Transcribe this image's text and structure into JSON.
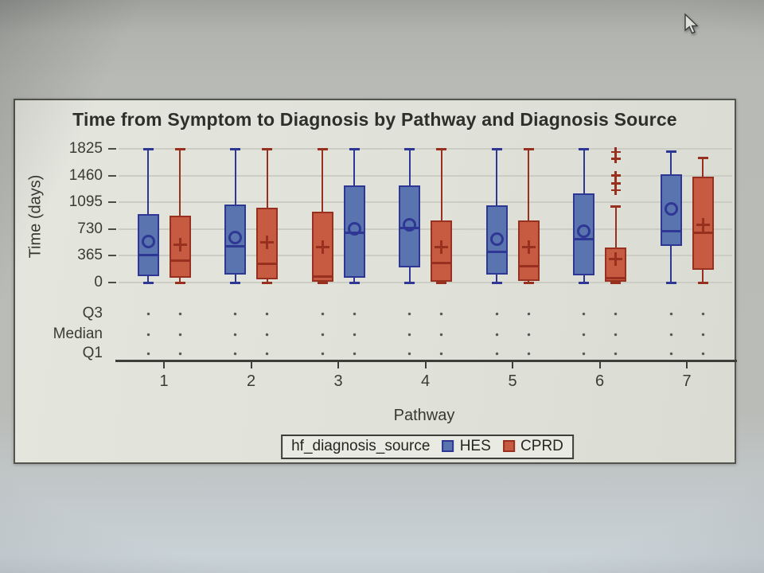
{
  "chart_data": {
    "type": "grouped_boxplot",
    "title": "Time from Symptom to Diagnosis by Pathway and Diagnosis Source",
    "xlabel": "Pathway",
    "ylabel": "Time (days)",
    "ylim": [
      0,
      1825
    ],
    "y_ticks": [
      0,
      365,
      730,
      1095,
      1460,
      1825
    ],
    "categories": [
      "1",
      "2",
      "3",
      "4",
      "5",
      "6",
      "7"
    ],
    "stat_rows": [
      "Q3",
      "Median",
      "Q1"
    ],
    "grid": "horizontal",
    "groups": [
      {
        "name": "HES",
        "fill": "#5a74b0",
        "stroke": "#2f3795",
        "marker": "circle"
      },
      {
        "name": "CPRD",
        "fill": "#c75b41",
        "stroke": "#97301f",
        "marker": "plus"
      }
    ],
    "boxes": [
      {
        "pathway": "1",
        "group": "HES",
        "position": "left",
        "low": 0,
        "q1": 90,
        "median": 380,
        "mean": 560,
        "q3": 930,
        "high": 1825,
        "outliers": []
      },
      {
        "pathway": "1",
        "group": "CPRD",
        "position": "right",
        "low": 0,
        "q1": 70,
        "median": 300,
        "mean": 520,
        "q3": 910,
        "high": 1825,
        "outliers": []
      },
      {
        "pathway": "2",
        "group": "HES",
        "position": "left",
        "low": 0,
        "q1": 110,
        "median": 490,
        "mean": 610,
        "q3": 1070,
        "high": 1825,
        "outliers": []
      },
      {
        "pathway": "2",
        "group": "CPRD",
        "position": "right",
        "low": 0,
        "q1": 40,
        "median": 260,
        "mean": 550,
        "q3": 1020,
        "high": 1825,
        "outliers": []
      },
      {
        "pathway": "3",
        "group": "CPRD",
        "position": "left",
        "low": 0,
        "q1": 10,
        "median": 80,
        "mean": 480,
        "q3": 970,
        "high": 1825,
        "outliers": []
      },
      {
        "pathway": "3",
        "group": "HES",
        "position": "right",
        "low": 0,
        "q1": 60,
        "median": 680,
        "mean": 730,
        "q3": 1330,
        "high": 1825,
        "outliers": []
      },
      {
        "pathway": "4",
        "group": "HES",
        "position": "left",
        "low": 0,
        "q1": 210,
        "median": 740,
        "mean": 790,
        "q3": 1320,
        "high": 1825,
        "outliers": []
      },
      {
        "pathway": "4",
        "group": "CPRD",
        "position": "right",
        "low": 0,
        "q1": 10,
        "median": 270,
        "mean": 480,
        "q3": 850,
        "high": 1825,
        "outliers": []
      },
      {
        "pathway": "5",
        "group": "HES",
        "position": "left",
        "low": 0,
        "q1": 110,
        "median": 420,
        "mean": 590,
        "q3": 1050,
        "high": 1825,
        "outliers": []
      },
      {
        "pathway": "5",
        "group": "CPRD",
        "position": "right",
        "low": 0,
        "q1": 20,
        "median": 220,
        "mean": 480,
        "q3": 850,
        "high": 1825,
        "outliers": []
      },
      {
        "pathway": "6",
        "group": "HES",
        "position": "left",
        "low": 0,
        "q1": 100,
        "median": 590,
        "mean": 700,
        "q3": 1220,
        "high": 1825,
        "outliers": []
      },
      {
        "pathway": "6",
        "group": "CPRD",
        "position": "right",
        "low": 0,
        "q1": 10,
        "median": 65,
        "mean": 320,
        "q3": 480,
        "high": 1040,
        "outliers": [
          1260,
          1350,
          1460,
          1690,
          1780
        ]
      },
      {
        "pathway": "7",
        "group": "HES",
        "position": "left",
        "low": 0,
        "q1": 500,
        "median": 700,
        "mean": 1000,
        "q3": 1480,
        "high": 1790,
        "outliers": []
      },
      {
        "pathway": "7",
        "group": "CPRD",
        "position": "right",
        "low": 0,
        "q1": 170,
        "median": 680,
        "mean": 790,
        "q3": 1450,
        "high": 1700,
        "outliers": []
      }
    ],
    "legend": {
      "label": "hf_diagnosis_source",
      "entries": [
        {
          "name": "HES"
        },
        {
          "name": "CPRD"
        }
      ]
    }
  }
}
